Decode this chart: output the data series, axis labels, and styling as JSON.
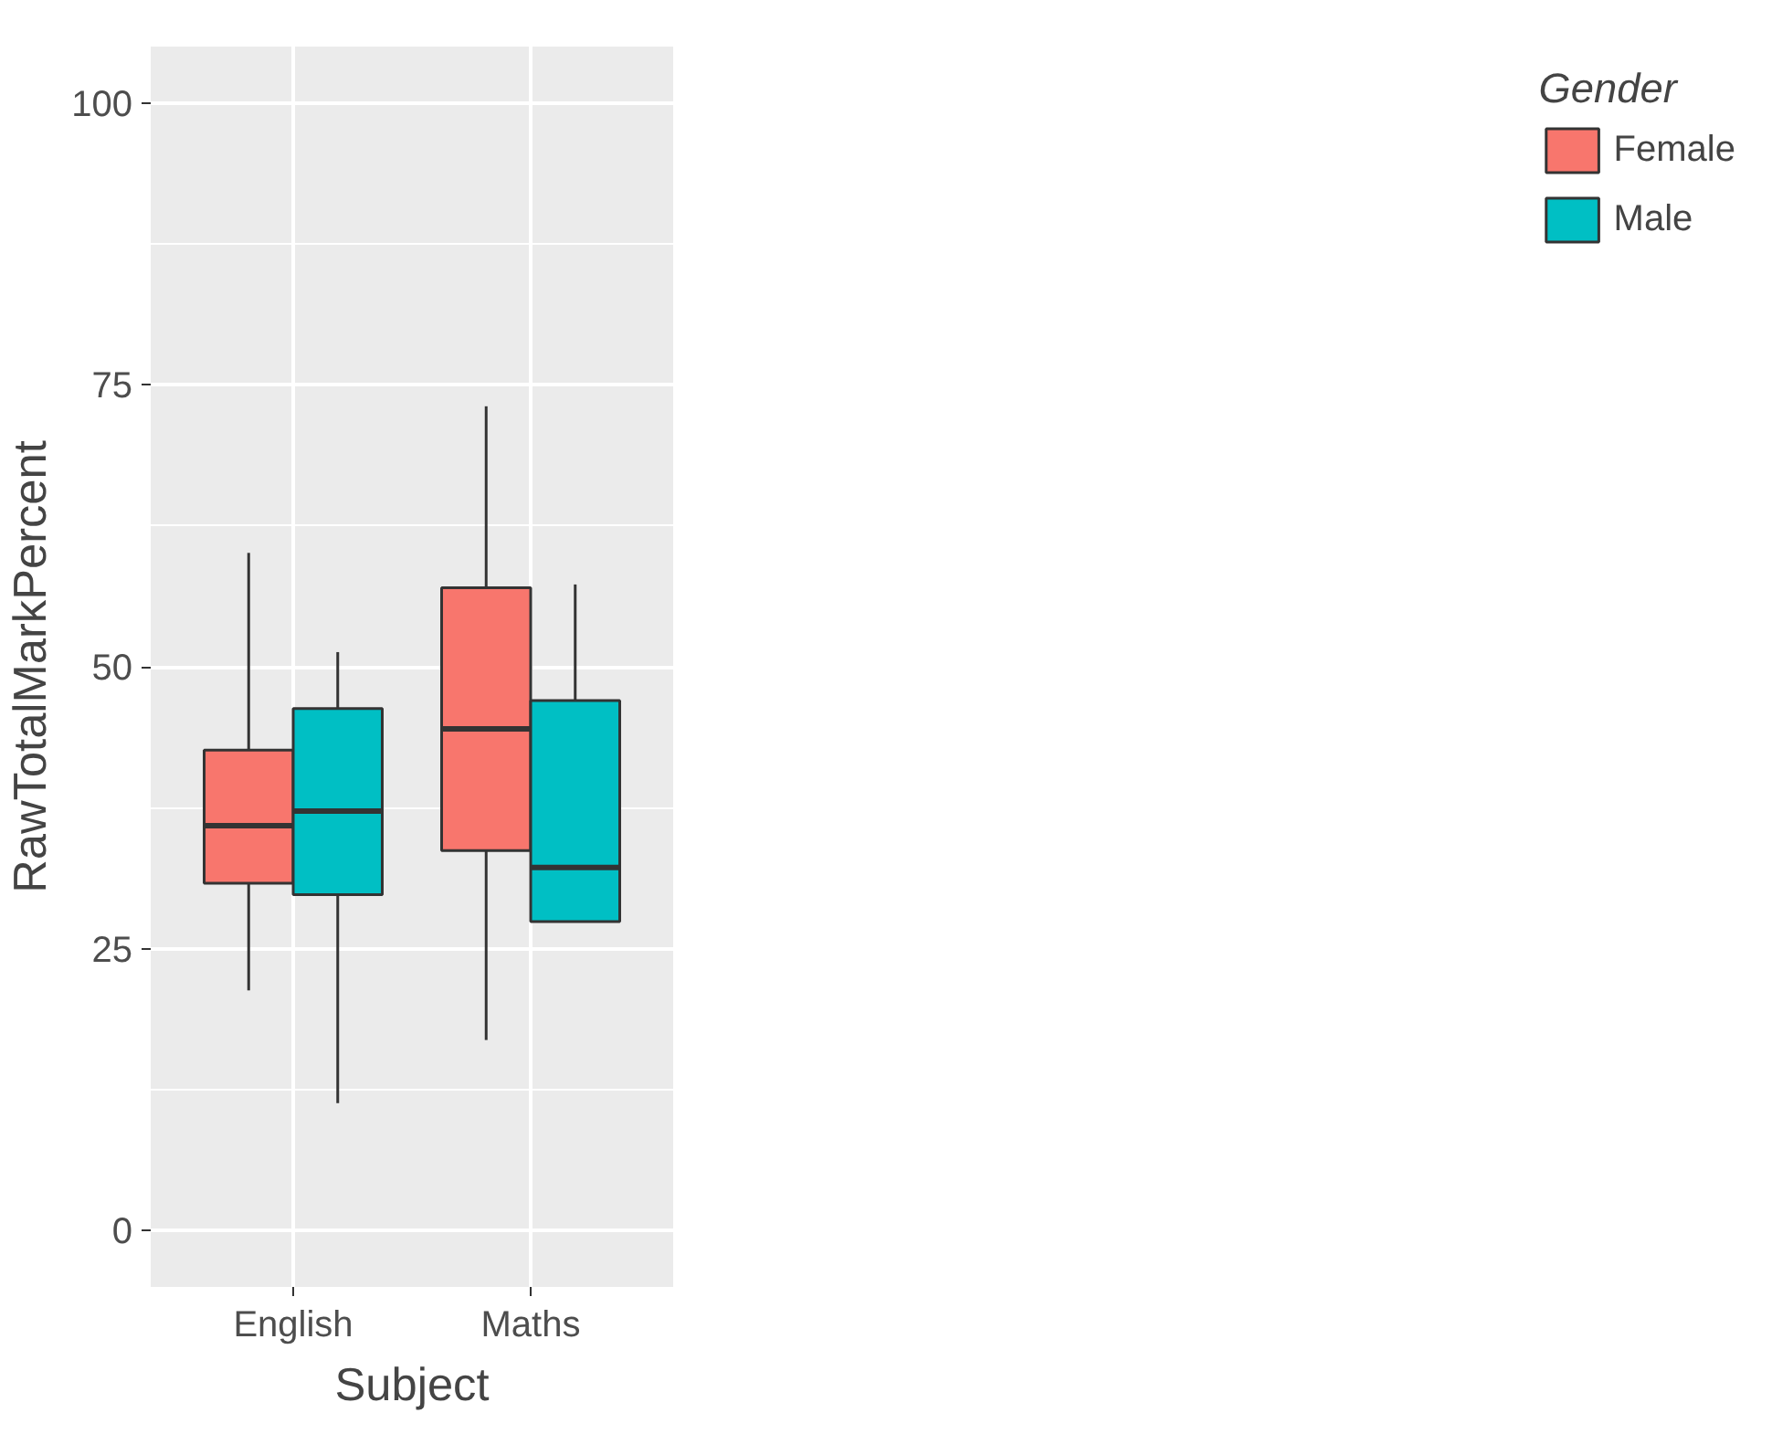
{
  "chart_data": {
    "type": "box",
    "xlabel": "Subject",
    "ylabel": "RawTotalMarkPercent",
    "legend_title": "Gender",
    "categories": [
      "English",
      "Maths"
    ],
    "series": [
      {
        "name": "Female",
        "color": "#f8766d",
        "boxes": [
          {
            "low": 21.3,
            "q1": 30.8,
            "median": 35.9,
            "q3": 42.6,
            "high": 60.1
          },
          {
            "low": 16.9,
            "q1": 33.7,
            "median": 44.5,
            "q3": 57.0,
            "high": 73.1
          }
        ]
      },
      {
        "name": "Male",
        "color": "#00bfc4",
        "boxes": [
          {
            "low": 11.3,
            "q1": 29.8,
            "median": 37.2,
            "q3": 46.3,
            "high": 51.3
          },
          {
            "low": 27.4,
            "q1": 27.4,
            "median": 32.2,
            "q3": 47.0,
            "high": 57.3
          }
        ]
      }
    ],
    "ylim": [
      -5,
      105
    ],
    "yticks": [
      0,
      25,
      50,
      75,
      100
    ],
    "grid": true,
    "legend": "right"
  }
}
